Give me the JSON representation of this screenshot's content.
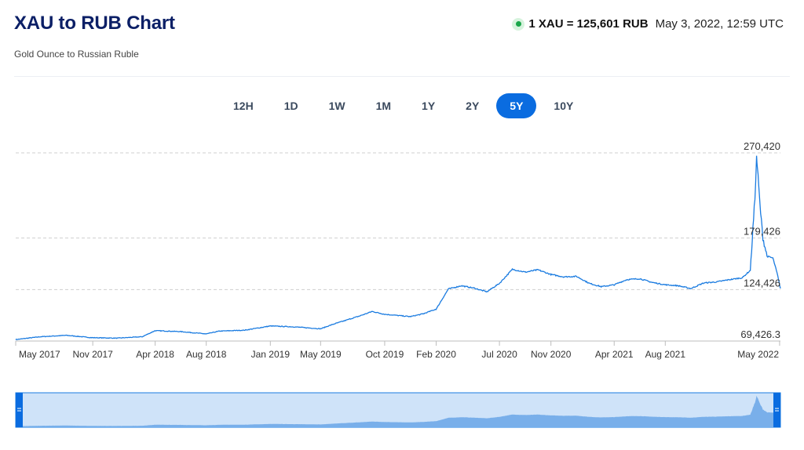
{
  "header": {
    "title": "XAU to RUB Chart",
    "subtitle": "Gold Ounce to Russian Ruble",
    "rate": "1 XAU = 125,601 RUB",
    "timestamp": "May 3, 2022, 12:59 UTC"
  },
  "tabs": [
    {
      "label": "12H",
      "active": false
    },
    {
      "label": "1D",
      "active": false
    },
    {
      "label": "1W",
      "active": false
    },
    {
      "label": "1M",
      "active": false
    },
    {
      "label": "1Y",
      "active": false
    },
    {
      "label": "2Y",
      "active": false
    },
    {
      "label": "5Y",
      "active": true
    },
    {
      "label": "10Y",
      "active": false
    }
  ],
  "colors": {
    "line": "#1a7be0",
    "accent": "#0a6ce0",
    "navigator_fill": "#cfe3f9",
    "live": "#1aa64a"
  },
  "chart_data": {
    "type": "line",
    "title": "XAU to RUB Chart",
    "subtitle": "Gold Ounce to Russian Ruble",
    "y_labels": [
      {
        "value": 270420,
        "label": "270,420"
      },
      {
        "value": 179426,
        "label": "179,426"
      },
      {
        "value": 124426,
        "label": "124,426"
      },
      {
        "value": 69426.3,
        "label": "69,426.3"
      }
    ],
    "x_labels": [
      "May 2017",
      "Nov 2017",
      "Apr 2018",
      "Aug 2018",
      "Jan 2019",
      "May 2019",
      "Oct 2019",
      "Feb 2020",
      "Jul 2020",
      "Nov 2020",
      "Apr 2021",
      "Aug 2021",
      "May 2022"
    ],
    "x_tick_dates": [
      "2017-05-03",
      "2017-11-03",
      "2018-04-01",
      "2018-08-01",
      "2019-01-01",
      "2019-05-01",
      "2019-10-01",
      "2020-02-01",
      "2020-07-01",
      "2020-11-01",
      "2021-04-01",
      "2021-08-01",
      "2022-05-01"
    ],
    "xlim": [
      "2017-05-03",
      "2022-05-03"
    ],
    "ylim": [
      69426.3,
      270420
    ],
    "grid": true,
    "series": [
      {
        "points": [
          [
            "2017-05-03",
            71000
          ],
          [
            "2017-07-01",
            74000
          ],
          [
            "2017-09-01",
            75500
          ],
          [
            "2017-11-01",
            73000
          ],
          [
            "2018-01-01",
            72500
          ],
          [
            "2018-03-01",
            74000
          ],
          [
            "2018-04-01",
            80500
          ],
          [
            "2018-06-01",
            79500
          ],
          [
            "2018-08-01",
            77000
          ],
          [
            "2018-09-01",
            80000
          ],
          [
            "2018-11-01",
            81000
          ],
          [
            "2019-01-01",
            85500
          ],
          [
            "2019-03-01",
            84500
          ],
          [
            "2019-05-01",
            82500
          ],
          [
            "2019-06-01",
            87500
          ],
          [
            "2019-08-01",
            96000
          ],
          [
            "2019-09-01",
            101000
          ],
          [
            "2019-10-01",
            98000
          ],
          [
            "2019-12-01",
            95500
          ],
          [
            "2020-01-01",
            98500
          ],
          [
            "2020-02-01",
            103500
          ],
          [
            "2020-03-01",
            125000
          ],
          [
            "2020-04-01",
            128500
          ],
          [
            "2020-05-01",
            126000
          ],
          [
            "2020-06-01",
            122000
          ],
          [
            "2020-07-01",
            131000
          ],
          [
            "2020-08-01",
            146000
          ],
          [
            "2020-09-01",
            143000
          ],
          [
            "2020-10-01",
            145500
          ],
          [
            "2020-11-01",
            140500
          ],
          [
            "2020-12-01",
            138000
          ],
          [
            "2021-01-01",
            138500
          ],
          [
            "2021-02-01",
            131000
          ],
          [
            "2021-03-01",
            127500
          ],
          [
            "2021-04-01",
            129500
          ],
          [
            "2021-05-01",
            135000
          ],
          [
            "2021-06-01",
            136000
          ],
          [
            "2021-07-01",
            132000
          ],
          [
            "2021-08-01",
            129500
          ],
          [
            "2021-09-01",
            128500
          ],
          [
            "2021-10-01",
            125500
          ],
          [
            "2021-11-01",
            131500
          ],
          [
            "2021-12-01",
            132500
          ],
          [
            "2022-01-01",
            135000
          ],
          [
            "2022-02-01",
            137000
          ],
          [
            "2022-02-20",
            145000
          ],
          [
            "2022-03-03",
            222000
          ],
          [
            "2022-03-07",
            265000
          ],
          [
            "2022-03-09",
            255000
          ],
          [
            "2022-03-15",
            215000
          ],
          [
            "2022-03-22",
            180000
          ],
          [
            "2022-04-01",
            160000
          ],
          [
            "2022-04-15",
            158000
          ],
          [
            "2022-04-25",
            142000
          ],
          [
            "2022-05-03",
            125601
          ]
        ]
      }
    ]
  }
}
